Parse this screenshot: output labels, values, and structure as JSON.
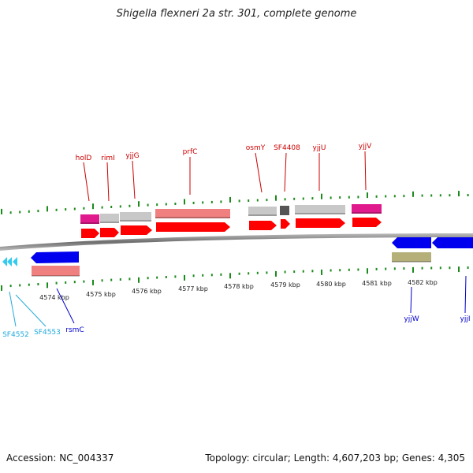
{
  "title": "Shigella flexneri 2a str. 301, complete genome",
  "footer": {
    "accession": "Accession: NC_004337",
    "summary": "Topology: circular; Length: 4,607,203 bp; Genes: 4,305"
  },
  "colors": {
    "forward_cds": "#ff0000",
    "forward_gene_gray": "#c8c8c8",
    "forward_gene_pink": "#f08080",
    "forward_gene_magenta": "#e0198c",
    "forward_gene_dark": "#555555",
    "reverse_cds": "#0000ee",
    "reverse_gene_pink": "#f08080",
    "reverse_gene_olive": "#b5b07a",
    "reverse_cyan": "#33ccee",
    "tick": "#1a8a1a",
    "backbone": "#888888",
    "label_red": "#cc0000",
    "label_blue": "#0000cc",
    "label_cyan": "#22aadd"
  },
  "kbp_labels": [
    "4574 kbp",
    "4575 kbp",
    "4576 kbp",
    "4577 kbp",
    "4578 kbp",
    "4579 kbp",
    "4580 kbp",
    "4581 kbp",
    "4582 kbp"
  ],
  "forward_labels": [
    {
      "name": "holD",
      "color": "label_red"
    },
    {
      "name": "rimI",
      "color": "label_red"
    },
    {
      "name": "yjjG",
      "color": "label_red"
    },
    {
      "name": "prfC",
      "color": "label_red"
    },
    {
      "name": "osmY",
      "color": "label_red"
    },
    {
      "name": "SF4408",
      "color": "label_red"
    },
    {
      "name": "yjjU",
      "color": "label_red"
    },
    {
      "name": "yjjV",
      "color": "label_red"
    }
  ],
  "reverse_labels": [
    {
      "name": "SF4552",
      "color": "label_cyan"
    },
    {
      "name": "SF4553",
      "color": "label_cyan"
    },
    {
      "name": "rsmC",
      "color": "label_blue"
    },
    {
      "name": "yjjW",
      "color": "label_blue"
    },
    {
      "name": "yjjI",
      "color": "label_blue"
    }
  ]
}
